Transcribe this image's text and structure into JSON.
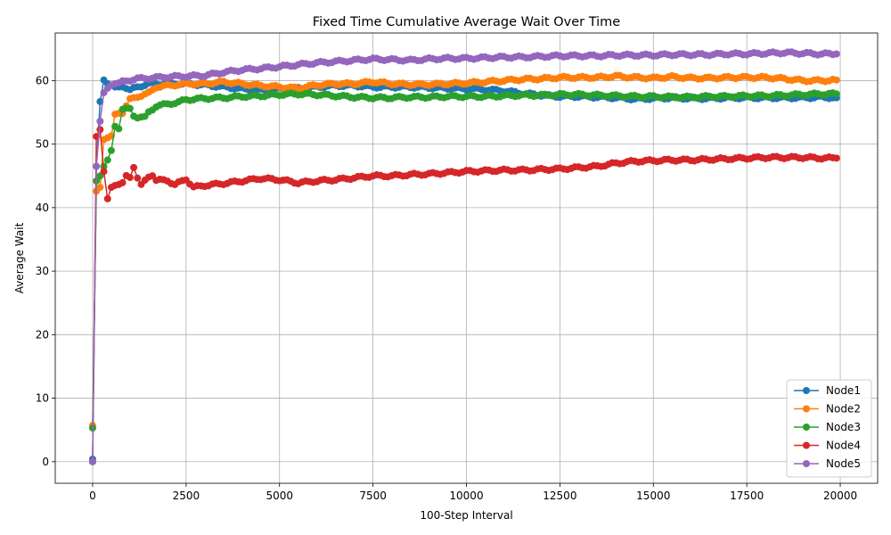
{
  "chart_data": {
    "type": "line",
    "title": "Fixed Time Cumulative Average Wait Over Time",
    "xlabel": "100-Step Interval",
    "ylabel": "Average Wait",
    "xlim": [
      -1000,
      21000
    ],
    "ylim": [
      -3.4,
      67.5
    ],
    "xticks": [
      0,
      2500,
      5000,
      7500,
      10000,
      12500,
      15000,
      17500,
      20000
    ],
    "xtick_labels": [
      "0",
      "2500",
      "5000",
      "7500",
      "10000",
      "12500",
      "15000",
      "17500",
      "20000"
    ],
    "yticks": [
      0,
      10,
      20,
      30,
      40,
      50,
      60
    ],
    "ytick_labels": [
      "0",
      "10",
      "20",
      "30",
      "40",
      "50",
      "60"
    ],
    "grid": true,
    "legend_position": "lower-right",
    "marker": "circle",
    "series": [
      {
        "name": "Node1",
        "color": "#1f77b4",
        "points": [
          [
            0,
            0.4
          ],
          [
            100,
            46.5
          ],
          [
            200,
            56.7
          ],
          [
            300,
            60.1
          ],
          [
            400,
            59.5
          ],
          [
            600,
            59.0
          ],
          [
            800,
            59.0
          ],
          [
            1000,
            58.5
          ],
          [
            1200,
            59.0
          ],
          [
            1500,
            59.5
          ],
          [
            2000,
            59.5
          ],
          [
            2500,
            59.5
          ],
          [
            3000,
            59.3
          ],
          [
            3500,
            59.0
          ],
          [
            4000,
            58.7
          ],
          [
            4500,
            58.5
          ],
          [
            5000,
            58.7
          ],
          [
            5500,
            58.8
          ],
          [
            6000,
            59.0
          ],
          [
            6500,
            59.2
          ],
          [
            7000,
            59.2
          ],
          [
            7500,
            59.0
          ],
          [
            8000,
            59.0
          ],
          [
            8500,
            59.0
          ],
          [
            9000,
            58.9
          ],
          [
            9500,
            58.8
          ],
          [
            10000,
            58.7
          ],
          [
            10500,
            58.6
          ],
          [
            11000,
            58.4
          ],
          [
            11500,
            58.0
          ],
          [
            12000,
            57.7
          ],
          [
            12500,
            57.5
          ],
          [
            13000,
            57.5
          ],
          [
            13500,
            57.4
          ],
          [
            14000,
            57.3
          ],
          [
            14500,
            57.1
          ],
          [
            15000,
            57.2
          ],
          [
            15500,
            57.3
          ],
          [
            16000,
            57.2
          ],
          [
            16500,
            57.2
          ],
          [
            17000,
            57.3
          ],
          [
            17500,
            57.3
          ],
          [
            18000,
            57.3
          ],
          [
            18500,
            57.3
          ],
          [
            19000,
            57.3
          ],
          [
            19500,
            57.4
          ],
          [
            19900,
            57.3
          ]
        ]
      },
      {
        "name": "Node2",
        "color": "#ff7f0e",
        "points": [
          [
            0,
            5.7
          ],
          [
            100,
            42.6
          ],
          [
            200,
            43.2
          ],
          [
            300,
            50.7
          ],
          [
            400,
            51.0
          ],
          [
            500,
            51.3
          ],
          [
            600,
            54.7
          ],
          [
            800,
            55.0
          ],
          [
            1000,
            57.0
          ],
          [
            1200,
            57.5
          ],
          [
            1500,
            58.0
          ],
          [
            1700,
            59.0
          ],
          [
            2000,
            59.2
          ],
          [
            2500,
            59.5
          ],
          [
            3000,
            59.5
          ],
          [
            3500,
            59.8
          ],
          [
            4000,
            59.5
          ],
          [
            4500,
            59.2
          ],
          [
            5000,
            59.0
          ],
          [
            5500,
            58.8
          ],
          [
            6000,
            59.3
          ],
          [
            6500,
            59.5
          ],
          [
            7000,
            59.5
          ],
          [
            7500,
            59.8
          ],
          [
            8000,
            59.5
          ],
          [
            8500,
            59.4
          ],
          [
            9000,
            59.4
          ],
          [
            9500,
            59.5
          ],
          [
            10000,
            59.6
          ],
          [
            10500,
            59.8
          ],
          [
            11000,
            60.0
          ],
          [
            11500,
            60.2
          ],
          [
            12000,
            60.3
          ],
          [
            12500,
            60.5
          ],
          [
            13000,
            60.5
          ],
          [
            13500,
            60.5
          ],
          [
            14000,
            60.7
          ],
          [
            14500,
            60.5
          ],
          [
            15000,
            60.4
          ],
          [
            15500,
            60.6
          ],
          [
            16000,
            60.4
          ],
          [
            16500,
            60.4
          ],
          [
            17000,
            60.5
          ],
          [
            17500,
            60.5
          ],
          [
            18000,
            60.5
          ],
          [
            18500,
            60.3
          ],
          [
            19000,
            60.0
          ],
          [
            19500,
            60.0
          ],
          [
            19900,
            60.1
          ]
        ]
      },
      {
        "name": "Node3",
        "color": "#2ca02c",
        "points": [
          [
            0,
            5.3
          ],
          [
            100,
            44.2
          ],
          [
            200,
            45.0
          ],
          [
            300,
            46.5
          ],
          [
            400,
            47.5
          ],
          [
            500,
            49.0
          ],
          [
            600,
            52.8
          ],
          [
            700,
            52.6
          ],
          [
            800,
            55.5
          ],
          [
            1000,
            55.5
          ],
          [
            1100,
            54.5
          ],
          [
            1200,
            54.3
          ],
          [
            1400,
            54.2
          ],
          [
            1500,
            55.0
          ],
          [
            1700,
            56.0
          ],
          [
            2000,
            56.3
          ],
          [
            2300,
            56.6
          ],
          [
            2500,
            57.0
          ],
          [
            3000,
            57.2
          ],
          [
            3500,
            57.3
          ],
          [
            4000,
            57.5
          ],
          [
            4500,
            57.6
          ],
          [
            5000,
            57.8
          ],
          [
            5500,
            57.9
          ],
          [
            6000,
            57.8
          ],
          [
            6500,
            57.6
          ],
          [
            7000,
            57.4
          ],
          [
            7500,
            57.3
          ],
          [
            8000,
            57.3
          ],
          [
            8500,
            57.4
          ],
          [
            9000,
            57.4
          ],
          [
            9500,
            57.5
          ],
          [
            10000,
            57.5
          ],
          [
            10500,
            57.5
          ],
          [
            11000,
            57.6
          ],
          [
            11500,
            57.7
          ],
          [
            12000,
            57.7
          ],
          [
            12500,
            57.8
          ],
          [
            13000,
            57.8
          ],
          [
            13500,
            57.7
          ],
          [
            14000,
            57.6
          ],
          [
            14500,
            57.5
          ],
          [
            15000,
            57.5
          ],
          [
            15500,
            57.4
          ],
          [
            16000,
            57.4
          ],
          [
            16500,
            57.5
          ],
          [
            17000,
            57.5
          ],
          [
            17500,
            57.6
          ],
          [
            18000,
            57.6
          ],
          [
            18500,
            57.7
          ],
          [
            19000,
            57.8
          ],
          [
            19500,
            57.9
          ],
          [
            19900,
            57.9
          ]
        ]
      },
      {
        "name": "Node4",
        "color": "#d62728",
        "points": [
          [
            0,
            0.0
          ],
          [
            100,
            51.2
          ],
          [
            200,
            52.3
          ],
          [
            300,
            45.7
          ],
          [
            400,
            41.4
          ],
          [
            500,
            43.2
          ],
          [
            600,
            43.5
          ],
          [
            800,
            43.8
          ],
          [
            900,
            44.9
          ],
          [
            1000,
            44.8
          ],
          [
            1100,
            46.5
          ],
          [
            1200,
            44.7
          ],
          [
            1300,
            43.5
          ],
          [
            1500,
            44.9
          ],
          [
            1600,
            45.2
          ],
          [
            1700,
            44.3
          ],
          [
            2000,
            44.3
          ],
          [
            2200,
            43.6
          ],
          [
            2500,
            44.5
          ],
          [
            2700,
            43.2
          ],
          [
            3000,
            43.5
          ],
          [
            3500,
            43.8
          ],
          [
            4000,
            44.2
          ],
          [
            4500,
            44.6
          ],
          [
            5000,
            44.4
          ],
          [
            5500,
            43.9
          ],
          [
            6000,
            44.2
          ],
          [
            6500,
            44.4
          ],
          [
            7000,
            44.7
          ],
          [
            7500,
            45.0
          ],
          [
            8000,
            45.0
          ],
          [
            8500,
            45.2
          ],
          [
            9000,
            45.3
          ],
          [
            9500,
            45.5
          ],
          [
            10000,
            45.7
          ],
          [
            10500,
            45.8
          ],
          [
            11000,
            45.9
          ],
          [
            11500,
            45.9
          ],
          [
            12000,
            46.0
          ],
          [
            12500,
            46.1
          ],
          [
            13000,
            46.3
          ],
          [
            13500,
            46.5
          ],
          [
            14000,
            47.0
          ],
          [
            14500,
            47.3
          ],
          [
            15000,
            47.4
          ],
          [
            15500,
            47.5
          ],
          [
            16000,
            47.5
          ],
          [
            16500,
            47.6
          ],
          [
            17000,
            47.7
          ],
          [
            17500,
            47.8
          ],
          [
            18000,
            47.9
          ],
          [
            18500,
            47.9
          ],
          [
            19000,
            47.9
          ],
          [
            19500,
            47.8
          ],
          [
            19900,
            47.8
          ]
        ]
      },
      {
        "name": "Node5",
        "color": "#9467bd",
        "points": [
          [
            0,
            0.0
          ],
          [
            100,
            46.5
          ],
          [
            200,
            53.6
          ],
          [
            300,
            58.1
          ],
          [
            400,
            58.8
          ],
          [
            500,
            59.3
          ],
          [
            600,
            59.5
          ],
          [
            800,
            59.8
          ],
          [
            1000,
            60.1
          ],
          [
            1200,
            60.3
          ],
          [
            1500,
            60.4
          ],
          [
            2000,
            60.6
          ],
          [
            2500,
            60.7
          ],
          [
            3000,
            60.8
          ],
          [
            3500,
            61.3
          ],
          [
            4000,
            61.7
          ],
          [
            4500,
            61.9
          ],
          [
            5000,
            62.2
          ],
          [
            5500,
            62.5
          ],
          [
            6000,
            62.8
          ],
          [
            6500,
            63.0
          ],
          [
            7000,
            63.2
          ],
          [
            7500,
            63.4
          ],
          [
            8000,
            63.3
          ],
          [
            8500,
            63.2
          ],
          [
            9000,
            63.4
          ],
          [
            9500,
            63.5
          ],
          [
            10000,
            63.5
          ],
          [
            10500,
            63.6
          ],
          [
            11000,
            63.7
          ],
          [
            11500,
            63.7
          ],
          [
            12000,
            63.8
          ],
          [
            12500,
            63.9
          ],
          [
            13000,
            63.9
          ],
          [
            13500,
            63.9
          ],
          [
            14000,
            64.0
          ],
          [
            14500,
            64.0
          ],
          [
            15000,
            64.0
          ],
          [
            15500,
            64.1
          ],
          [
            16000,
            64.1
          ],
          [
            16500,
            64.1
          ],
          [
            17000,
            64.2
          ],
          [
            17500,
            64.2
          ],
          [
            18000,
            64.3
          ],
          [
            18500,
            64.4
          ],
          [
            19000,
            64.3
          ],
          [
            19500,
            64.2
          ],
          [
            19900,
            64.2
          ]
        ]
      }
    ]
  }
}
